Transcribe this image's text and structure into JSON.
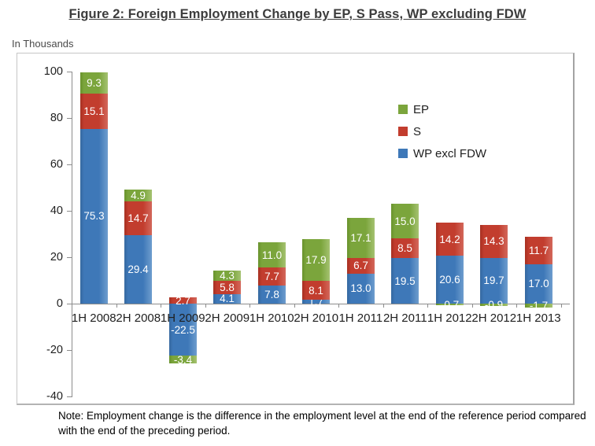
{
  "figure": {
    "title": "Figure 2: Foreign Employment Change by EP, S Pass, WP excluding FDW",
    "units_label": "In Thousands",
    "note": "Note: Employment change is the difference in the employment level at the end of the reference period compared with the end of the preceding period."
  },
  "colors": {
    "ep": "#7BA53C",
    "ep_dark": "#68922C",
    "ep_light": "#A5C271",
    "s": "#C23D2E",
    "s_dark": "#A63021",
    "s_light": "#D3685B",
    "wp": "#3E78B8",
    "wp_dark": "#35689F",
    "wp_light": "#6E9DCE",
    "axis": "#8C8C8C",
    "tick_label": "#1F1F1F",
    "bar_label": "#FFFFFF"
  },
  "chart_data": {
    "type": "bar",
    "stacked": true,
    "title": "Foreign Employment Change by EP, S Pass, WP excluding FDW",
    "ylabel": "In Thousands",
    "categories": [
      "1H 2008",
      "2H 2008",
      "1H 2009",
      "2H 2009",
      "1H 2010",
      "2H 2010",
      "1H 2011",
      "2H 2011",
      "1H 2012",
      "2H 2012",
      "1H 2013"
    ],
    "series": [
      {
        "name": "WP excl FDW",
        "color_key": "wp",
        "values": [
          75.3,
          29.4,
          -22.5,
          4.1,
          7.8,
          1.7,
          13.0,
          19.5,
          20.6,
          19.7,
          17.0
        ]
      },
      {
        "name": "S",
        "color_key": "s",
        "values": [
          15.1,
          14.7,
          2.7,
          5.8,
          7.7,
          8.1,
          6.7,
          8.5,
          14.2,
          14.3,
          11.7
        ]
      },
      {
        "name": "EP",
        "color_key": "ep",
        "values": [
          9.3,
          4.9,
          -3.4,
          4.3,
          11.0,
          17.9,
          17.1,
          15.0,
          -0.7,
          -0.9,
          -1.7
        ]
      }
    ],
    "legend": [
      {
        "label": "EP",
        "color_key": "ep"
      },
      {
        "label": "S",
        "color_key": "s"
      },
      {
        "label": "WP excl FDW",
        "color_key": "wp"
      }
    ],
    "ylim": [
      -40,
      100
    ],
    "yticks": [
      100,
      80,
      60,
      40,
      20,
      0,
      -20,
      -40
    ],
    "grid": false,
    "legend_position": "inside-top-right",
    "label_format": "one_decimal"
  }
}
